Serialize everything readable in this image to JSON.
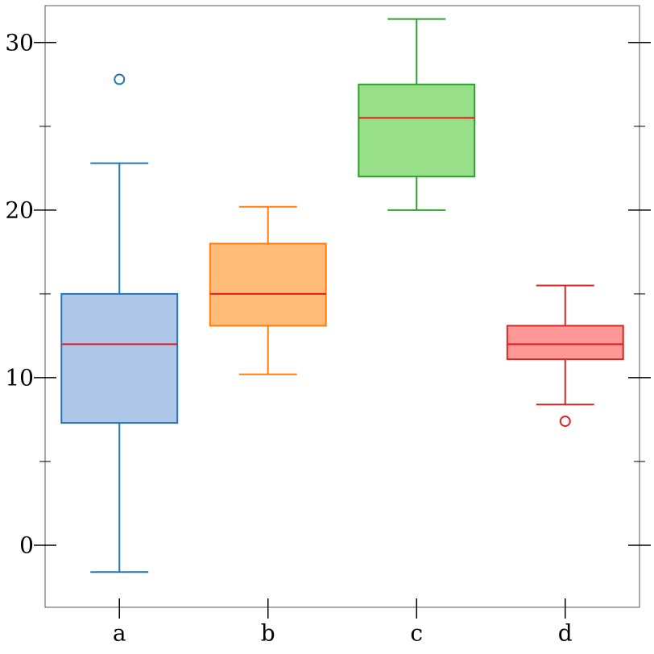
{
  "chart_data": {
    "type": "box",
    "categories": [
      "a",
      "b",
      "c",
      "d"
    ],
    "ylim": [
      -3.7,
      32.2
    ],
    "yticks": [
      0,
      10,
      20,
      30
    ],
    "y_minor_ticks": [
      5,
      15,
      25
    ],
    "grid": false,
    "boxes": [
      {
        "label": "a",
        "whisker_low": -1.6,
        "q1": 7.3,
        "median": 12.0,
        "q3": 15.0,
        "whisker_high": 22.8,
        "outliers": [
          27.8
        ],
        "edge_color": "#1f77b4",
        "fill_color": "#aec7e8"
      },
      {
        "label": "b",
        "whisker_low": 10.2,
        "q1": 13.1,
        "median": 15.0,
        "q3": 18.0,
        "whisker_high": 20.2,
        "outliers": [],
        "edge_color": "#ff7f0e",
        "fill_color": "#ffbb78"
      },
      {
        "label": "c",
        "whisker_low": 20.0,
        "q1": 22.0,
        "median": 25.5,
        "q3": 27.5,
        "whisker_high": 31.4,
        "outliers": [],
        "edge_color": "#2ca02c",
        "fill_color": "#98df8a"
      },
      {
        "label": "d",
        "whisker_low": 8.4,
        "q1": 11.1,
        "median": 12.0,
        "q3": 13.1,
        "whisker_high": 15.5,
        "outliers": [
          7.4
        ],
        "edge_color": "#d62728",
        "fill_color": "#ff9896"
      }
    ],
    "median_color": "#e31a1c"
  }
}
